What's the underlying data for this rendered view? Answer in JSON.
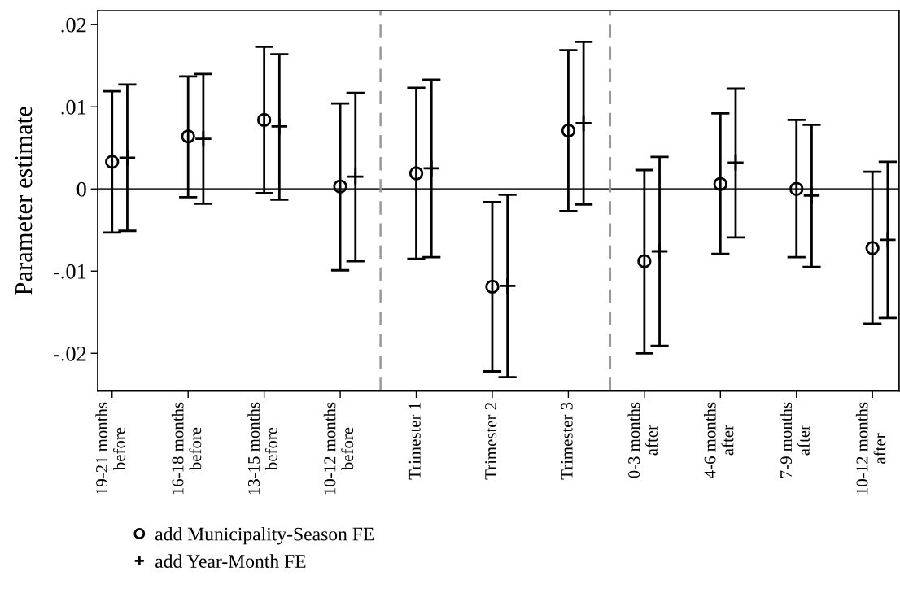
{
  "chart_data": {
    "type": "scatter",
    "ylabel": "Parameter estimate",
    "categories": [
      "19-21 months\nbefore",
      "16-18 months\nbefore",
      "13-15 months\nbefore",
      "10-12 months\nbefore",
      "Trimester 1",
      "Trimester 2",
      "Trimester 3",
      "0-3 months\nafter",
      "4-6 months\nafter",
      "7-9 months\nafter",
      "10-12 months\nafter"
    ],
    "series": [
      {
        "name": "add Municipality-Season FE",
        "color": "#000000",
        "marker": "circle",
        "values": [
          0.0033,
          0.0064,
          0.0084,
          0.0003,
          0.0019,
          -0.0119,
          0.0071,
          -0.0088,
          0.0006,
          0.0,
          -0.0072
        ],
        "errors": [
          [
            -0.0053,
            0.0119
          ],
          [
            -0.001,
            0.0137
          ],
          [
            -0.0005,
            0.0173
          ],
          [
            -0.0099,
            0.0104
          ],
          [
            -0.0085,
            0.0123
          ],
          [
            -0.0222,
            -0.0016
          ],
          [
            -0.0027,
            0.0169
          ],
          [
            -0.02,
            0.0023
          ],
          [
            -0.0079,
            0.0092
          ],
          [
            -0.0083,
            0.0084
          ],
          [
            -0.0164,
            0.0021
          ]
        ]
      },
      {
        "name": "add Year-Month FE",
        "color": "#000000",
        "marker": "cross",
        "values": [
          0.0038,
          0.0061,
          0.0076,
          0.0015,
          0.0025,
          -0.0118,
          0.008,
          -0.0076,
          0.0032,
          -0.0008,
          -0.0062
        ],
        "errors": [
          [
            -0.0051,
            0.0127
          ],
          [
            -0.0018,
            0.014
          ],
          [
            -0.0013,
            0.0164
          ],
          [
            -0.0088,
            0.0117
          ],
          [
            -0.0083,
            0.0133
          ],
          [
            -0.0229,
            -0.0007
          ],
          [
            -0.0019,
            0.0179
          ],
          [
            -0.0191,
            0.0039
          ],
          [
            -0.0059,
            0.0122
          ],
          [
            -0.0095,
            0.0078
          ],
          [
            -0.0157,
            0.0033
          ]
        ]
      }
    ],
    "ylim": [
      -0.0246,
      0.0217
    ],
    "yticks": [
      {
        "value": 0.02,
        "label": ".02"
      },
      {
        "value": 0.01,
        "label": ".01"
      },
      {
        "value": 0,
        "label": "0"
      },
      {
        "value": -0.01,
        "label": "-.01"
      },
      {
        "value": -0.02,
        "label": "-.02"
      }
    ],
    "ref_lines": [
      {
        "axis": "y",
        "value": 0,
        "color": "#333333",
        "line_style": "solid"
      }
    ],
    "grid": false,
    "legend": "bottom left"
  }
}
